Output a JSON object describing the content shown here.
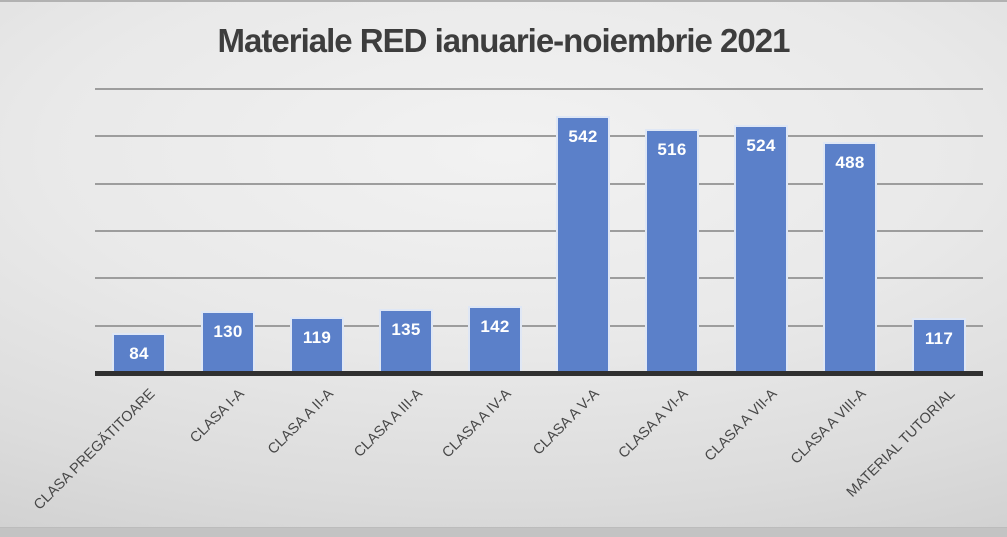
{
  "chart_data": {
    "type": "bar",
    "title": "Materiale RED ianuarie-noiembrie 2021",
    "categories": [
      "CLASA PREGĂTITOARE",
      "CLASA I-A",
      "CLASA A II-A",
      "CLASA A III-A",
      "CLASA A IV-A",
      "CLASA A V-A",
      "CLASA A VI-A",
      "CLASA A VII-A",
      "CLASA A VIII-A",
      "MATERIAL TUTORIAL"
    ],
    "values": [
      84,
      130,
      119,
      135,
      142,
      542,
      516,
      524,
      488,
      117
    ],
    "value_labels_shown": true,
    "xlabel": "",
    "ylabel": "",
    "ylim": [
      0,
      600
    ],
    "gridline_step": 100,
    "grid": "on",
    "legend": "none",
    "colors": {
      "bar_fill": "#5b80c9",
      "bar_border": "#dfe7f5",
      "value_label": "#ffffff",
      "gridline": "#9d9d9d",
      "axis_line": "#303030",
      "title_text": "#3d3d3d",
      "category_text": "#474747"
    }
  }
}
